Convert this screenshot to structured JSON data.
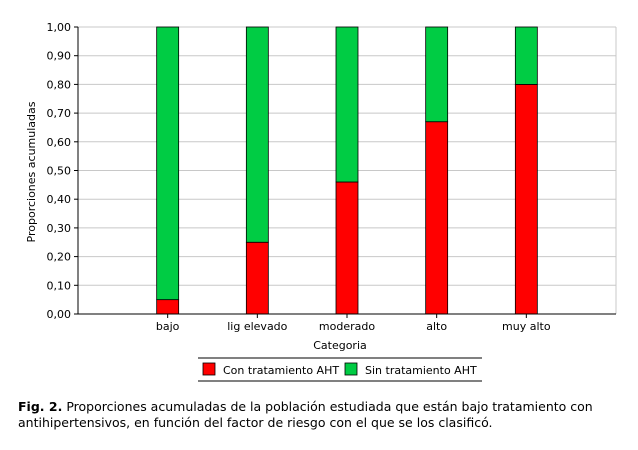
{
  "chart_data": {
    "type": "bar",
    "stacked": true,
    "xlabel": "Categoria",
    "ylabel": "Proporciones acumuladas",
    "ylim": [
      0,
      1
    ],
    "yticks": [
      "0,00",
      "0,10",
      "0,20",
      "0,30",
      "0,40",
      "0,50",
      "0,60",
      "0,70",
      "0,80",
      "0,90",
      "1,00"
    ],
    "categories": [
      "bajo",
      "lig elevado",
      "moderado",
      "alto",
      "muy alto"
    ],
    "series": [
      {
        "name": "Con tratamiento AHT",
        "color": "#ff0000",
        "values": [
          0.05,
          0.25,
          0.46,
          0.67,
          0.8
        ]
      },
      {
        "name": "Sin tratamiento AHT",
        "color": "#00cc44",
        "values": [
          0.95,
          0.75,
          0.54,
          0.33,
          0.2
        ]
      }
    ],
    "grid": true,
    "legend": "bottom"
  },
  "caption": {
    "label": "Fig. 2.",
    "text": "Proporciones acumuladas de la población estudiada que están bajo tratamiento con antihipertensivos, en función del factor de riesgo con el que se los clasificó."
  }
}
